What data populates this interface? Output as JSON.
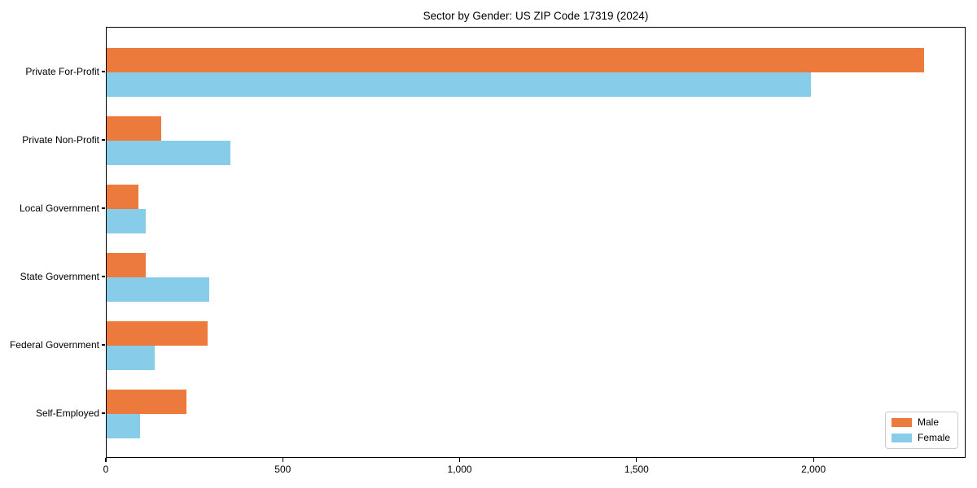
{
  "title": "Sector by Gender: US ZIP Code 17319 (2024)",
  "chart_data": {
    "type": "bar",
    "orientation": "horizontal",
    "title": "Sector by Gender: US ZIP Code 17319 (2024)",
    "categories": [
      "Private For-Profit",
      "Private Non-Profit",
      "Local Government",
      "State Government",
      "Federal Government",
      "Self-Employed"
    ],
    "series": [
      {
        "name": "Male",
        "color": "#EC7A3C",
        "values": [
          2310,
          155,
          90,
          110,
          285,
          225
        ]
      },
      {
        "name": "Female",
        "color": "#87CDE9",
        "values": [
          1990,
          350,
          110,
          290,
          135,
          95
        ]
      }
    ],
    "xlabel": "",
    "ylabel": "",
    "xticks": [
      0,
      500,
      1000,
      1500,
      2000
    ],
    "xtick_labels": [
      "0",
      "500",
      "1,000",
      "1,500",
      "2,000"
    ],
    "xlim": [
      0,
      2430
    ],
    "grid": false,
    "legend": {
      "position": "lower right",
      "entries": [
        "Male",
        "Female"
      ]
    },
    "colors": {
      "background": "#ffffff",
      "spine": "#000000",
      "legend_border": "#cccccc"
    }
  }
}
